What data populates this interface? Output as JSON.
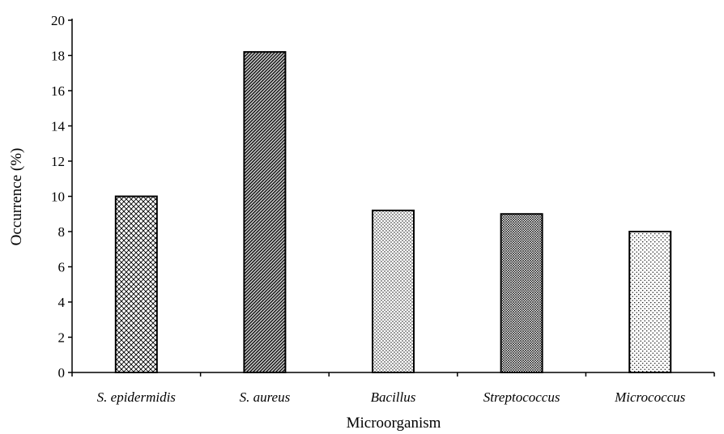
{
  "chart_data": {
    "type": "bar",
    "title": "",
    "xlabel": "Microorganism",
    "ylabel": "Occurrence (%)",
    "ylim": [
      0,
      20
    ],
    "yticks": [
      "0",
      "2",
      "4",
      "6",
      "8",
      "10",
      "12",
      "14",
      "16",
      "18",
      "20"
    ],
    "categories": [
      "S. epidermidis",
      "S. aureus",
      "Bacillus",
      "Streptococcus",
      "Micrococcus"
    ],
    "values": [
      10,
      18.2,
      9.2,
      9,
      8
    ],
    "grid": false,
    "legend": "none",
    "bar_fill_patterns": [
      "crosshatch-light",
      "diagonal-dense-dark",
      "dots-light",
      "dots-dense",
      "dots-sparse"
    ]
  }
}
